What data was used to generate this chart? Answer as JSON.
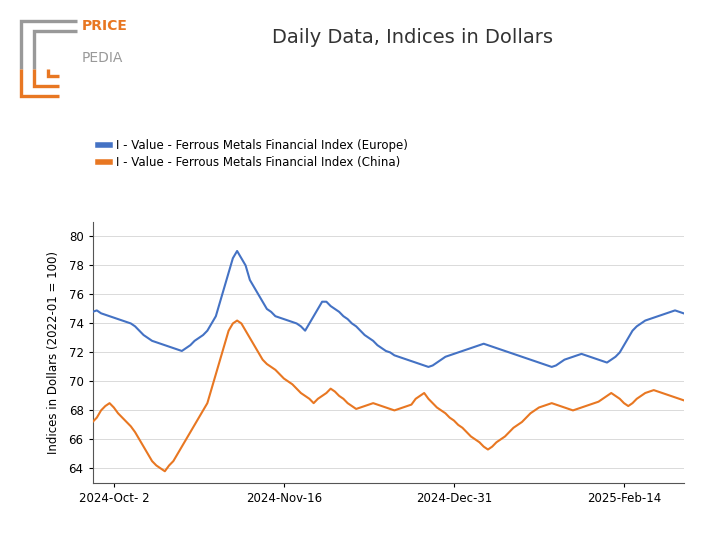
{
  "title": "Daily Data, Indices in Dollars",
  "ylabel": "Indices in Dollars (2022-01 = 100)",
  "legend_europe": "I - Value - Ferrous Metals Financial Index (Europe)",
  "legend_china": "I - Value - Ferrous Metals Financial Index (China)",
  "color_europe": "#4472C4",
  "color_china": "#E87722",
  "ylim": [
    63,
    81
  ],
  "yticks": [
    64,
    66,
    68,
    70,
    72,
    74,
    76,
    78,
    80
  ],
  "background_color": "#ffffff",
  "europe_data": [
    74.8,
    74.9,
    74.7,
    74.6,
    74.5,
    74.4,
    74.3,
    74.2,
    74.1,
    74.0,
    73.8,
    73.5,
    73.2,
    73.0,
    72.8,
    72.7,
    72.6,
    72.5,
    72.4,
    72.3,
    72.2,
    72.1,
    72.3,
    72.5,
    72.8,
    73.0,
    73.2,
    73.5,
    74.0,
    74.5,
    75.5,
    76.5,
    77.5,
    78.5,
    79.0,
    78.5,
    78.0,
    77.0,
    76.5,
    76.0,
    75.5,
    75.0,
    74.8,
    74.5,
    74.4,
    74.3,
    74.2,
    74.1,
    74.0,
    73.8,
    73.5,
    74.0,
    74.5,
    75.0,
    75.5,
    75.5,
    75.2,
    75.0,
    74.8,
    74.5,
    74.3,
    74.0,
    73.8,
    73.5,
    73.2,
    73.0,
    72.8,
    72.5,
    72.3,
    72.1,
    72.0,
    71.8,
    71.7,
    71.6,
    71.5,
    71.4,
    71.3,
    71.2,
    71.1,
    71.0,
    71.1,
    71.3,
    71.5,
    71.7,
    71.8,
    71.9,
    72.0,
    72.1,
    72.2,
    72.3,
    72.4,
    72.5,
    72.6,
    72.5,
    72.4,
    72.3,
    72.2,
    72.1,
    72.0,
    71.9,
    71.8,
    71.7,
    71.6,
    71.5,
    71.4,
    71.3,
    71.2,
    71.1,
    71.0,
    71.1,
    71.3,
    71.5,
    71.6,
    71.7,
    71.8,
    71.9,
    71.8,
    71.7,
    71.6,
    71.5,
    71.4,
    71.3,
    71.5,
    71.7,
    72.0,
    72.5,
    73.0,
    73.5,
    73.8,
    74.0,
    74.2,
    74.3,
    74.4,
    74.5,
    74.6,
    74.7,
    74.8,
    74.9,
    74.8,
    74.7
  ],
  "china_data": [
    67.2,
    67.5,
    68.0,
    68.3,
    68.5,
    68.2,
    67.8,
    67.5,
    67.2,
    66.9,
    66.5,
    66.0,
    65.5,
    65.0,
    64.5,
    64.2,
    64.0,
    63.8,
    64.2,
    64.5,
    65.0,
    65.5,
    66.0,
    66.5,
    67.0,
    67.5,
    68.0,
    68.5,
    69.5,
    70.5,
    71.5,
    72.5,
    73.5,
    74.0,
    74.2,
    74.0,
    73.5,
    73.0,
    72.5,
    72.0,
    71.5,
    71.2,
    71.0,
    70.8,
    70.5,
    70.2,
    70.0,
    69.8,
    69.5,
    69.2,
    69.0,
    68.8,
    68.5,
    68.8,
    69.0,
    69.2,
    69.5,
    69.3,
    69.0,
    68.8,
    68.5,
    68.3,
    68.1,
    68.2,
    68.3,
    68.4,
    68.5,
    68.4,
    68.3,
    68.2,
    68.1,
    68.0,
    68.1,
    68.2,
    68.3,
    68.4,
    68.8,
    69.0,
    69.2,
    68.8,
    68.5,
    68.2,
    68.0,
    67.8,
    67.5,
    67.3,
    67.0,
    66.8,
    66.5,
    66.2,
    66.0,
    65.8,
    65.5,
    65.3,
    65.5,
    65.8,
    66.0,
    66.2,
    66.5,
    66.8,
    67.0,
    67.2,
    67.5,
    67.8,
    68.0,
    68.2,
    68.3,
    68.4,
    68.5,
    68.4,
    68.3,
    68.2,
    68.1,
    68.0,
    68.1,
    68.2,
    68.3,
    68.4,
    68.5,
    68.6,
    68.8,
    69.0,
    69.2,
    69.0,
    68.8,
    68.5,
    68.3,
    68.5,
    68.8,
    69.0,
    69.2,
    69.3,
    69.4,
    69.3,
    69.2,
    69.1,
    69.0,
    68.9,
    68.8,
    68.7
  ],
  "x_tick_labels": [
    "2024-Oct- 2",
    "2024-Nov-16",
    "2024-Dec-31",
    "2025-Feb-14"
  ],
  "x_tick_positions": [
    5,
    45,
    85,
    125
  ],
  "orange": "#E87722",
  "gray_logo": "#999999"
}
